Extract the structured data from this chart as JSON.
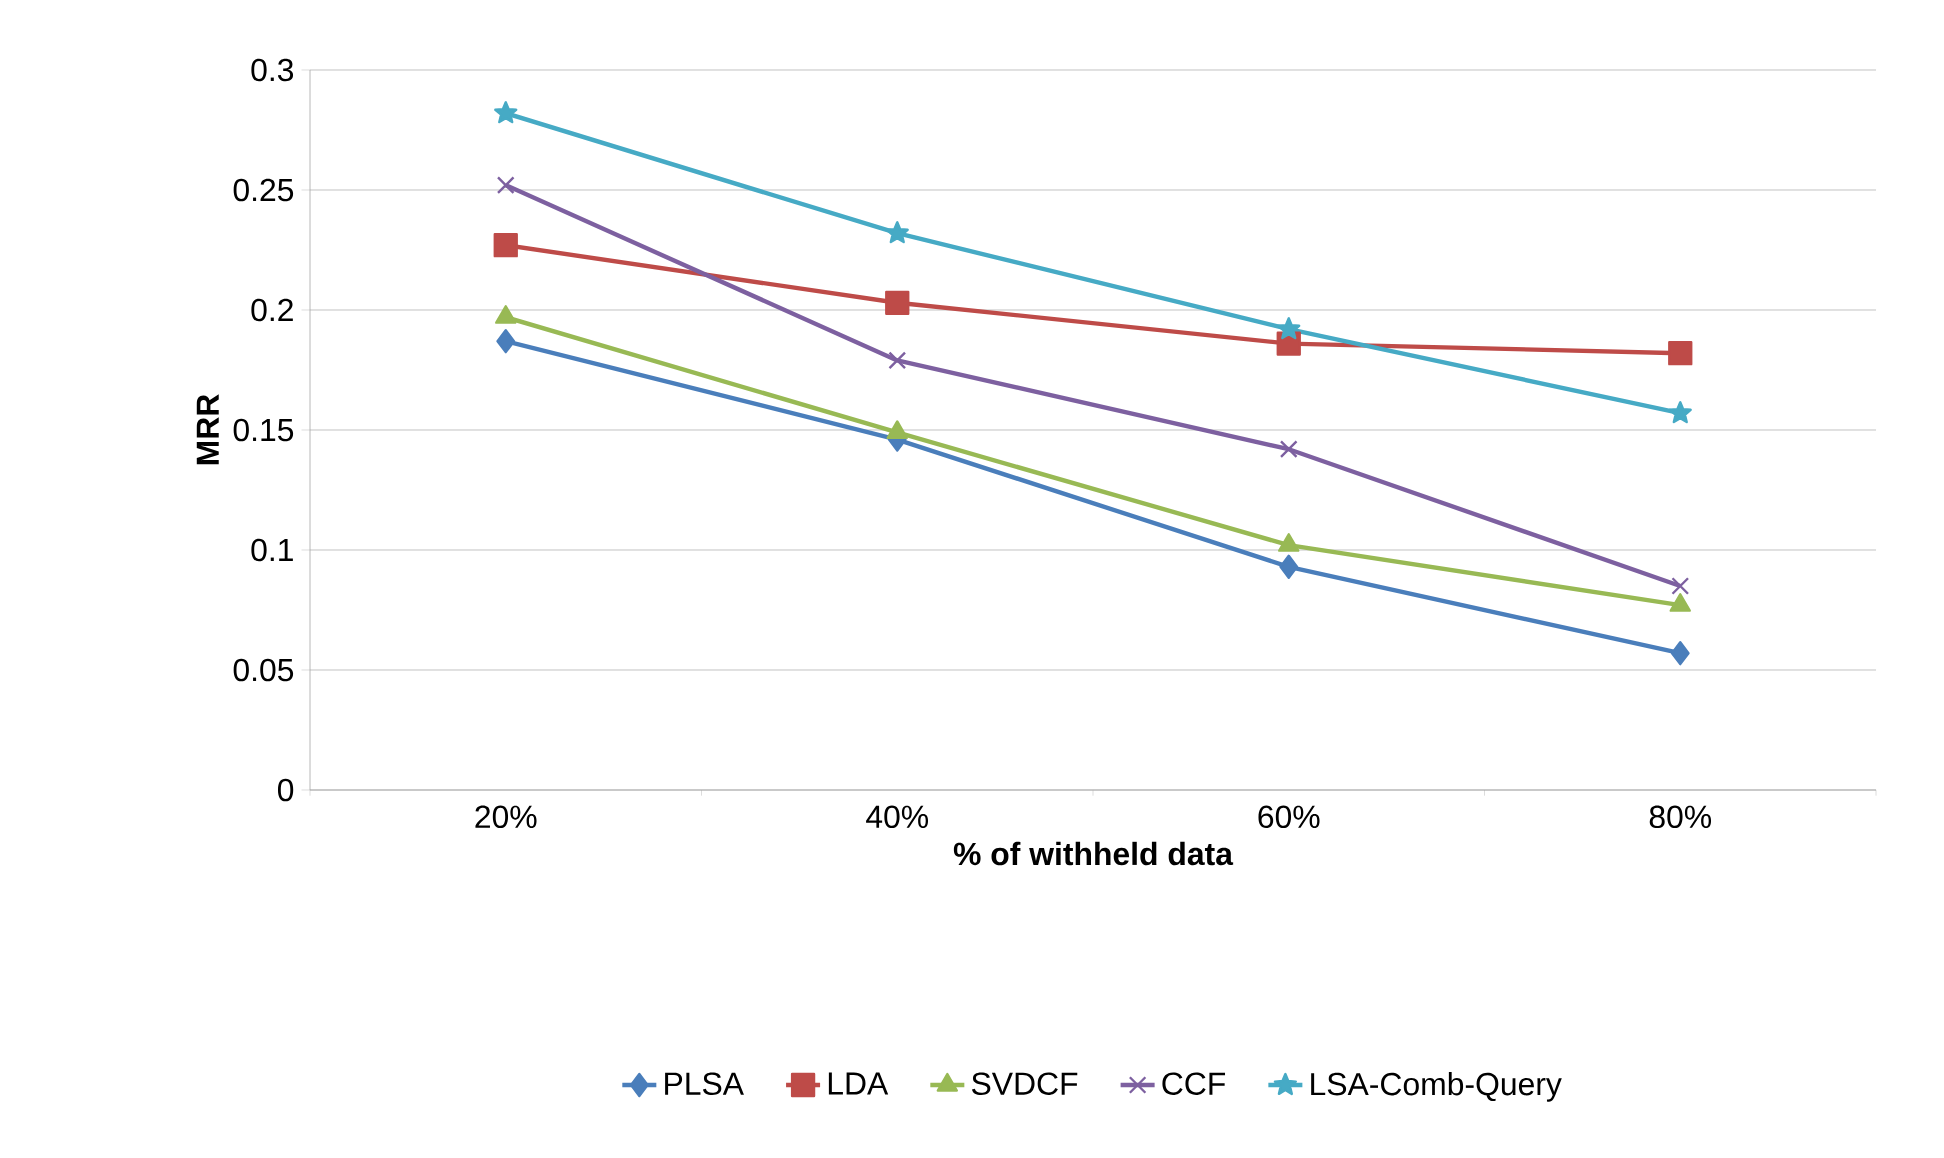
{
  "chart_data": {
    "type": "line",
    "xlabel": "% of withheld data",
    "ylabel": "MRR",
    "categories": [
      "20%",
      "40%",
      "60%",
      "80%"
    ],
    "series": [
      {
        "name": "PLSA",
        "color": "#4a7ebb",
        "marker": "diamond",
        "values": [
          0.187,
          0.146,
          0.093,
          0.057
        ]
      },
      {
        "name": "LDA",
        "color": "#be4b48",
        "marker": "square",
        "values": [
          0.227,
          0.203,
          0.186,
          0.182
        ]
      },
      {
        "name": "SVDCF",
        "color": "#98b954",
        "marker": "triangle",
        "values": [
          0.197,
          0.149,
          0.102,
          0.077
        ]
      },
      {
        "name": "CCF",
        "color": "#7d60a0",
        "marker": "cross",
        "values": [
          0.252,
          0.179,
          0.142,
          0.085
        ]
      },
      {
        "name": "LSA-Comb-Query",
        "color": "#46aac5",
        "marker": "star",
        "values": [
          0.282,
          0.232,
          0.192,
          0.157
        ]
      }
    ],
    "ylim": [
      0,
      0.3
    ],
    "yticks": [
      0,
      0.05,
      0.1,
      0.15,
      0.2,
      0.25,
      0.3
    ],
    "grid": "y",
    "legend": "bottom",
    "line_style": "solid"
  }
}
